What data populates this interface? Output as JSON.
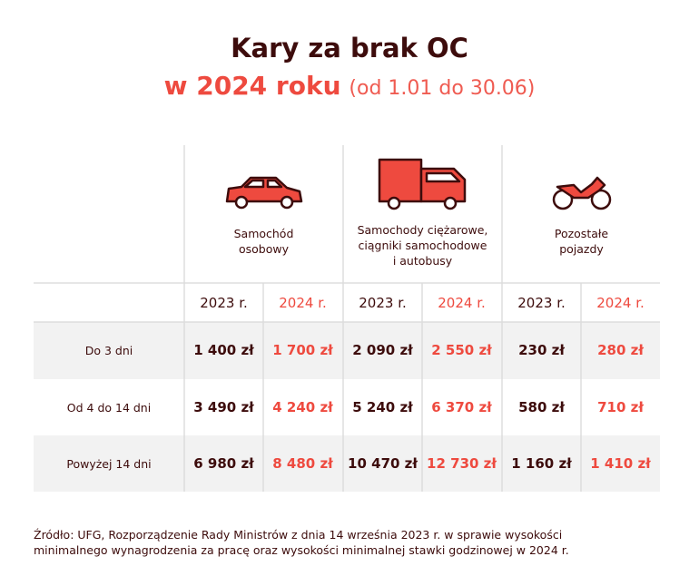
{
  "header": {
    "title": "Kary za brak OC",
    "subtitle": "w 2024 roku",
    "period": "(od 1.01 do 30.06)"
  },
  "table": {
    "groups": [
      [
        "Samochód",
        "osobowy"
      ],
      [
        "Samochody ciężarowe,",
        "ciągniki samochodowe",
        "i autobusy"
      ],
      [
        "Pozostałe",
        "pojazdy"
      ]
    ],
    "years": [
      "2023 r.",
      "2024 r.",
      "2023 r.",
      "2024 r.",
      "2023 r.",
      "2024 r."
    ],
    "rows": [
      {
        "label": "Do 3 dni",
        "values": [
          "1 400 zł",
          "1 700 zł",
          "2 090 zł",
          "2 550 zł",
          "230 zł",
          "280 zł"
        ]
      },
      {
        "label": "Od 4 do 14 dni",
        "values": [
          "3 490 zł",
          "4 240 zł",
          "5 240 zł",
          "6 370 zł",
          "580 zł",
          "710 zł"
        ]
      },
      {
        "label": "Powyżej 14 dni",
        "values": [
          "6 980 zł",
          "8 480 zł",
          "10 470 zł",
          "12 730 zł",
          "1 160 zł",
          "1 410 zł"
        ]
      }
    ]
  },
  "source": [
    "Źródło: UFG, Rozporządzenie Rady Ministrów z dnia 14 września 2023 r. w sprawie wysokości",
    "minimalnego wynagrodzenia za pracę oraz wysokości minimalnej stawki godzinowej w 2024 r."
  ]
}
